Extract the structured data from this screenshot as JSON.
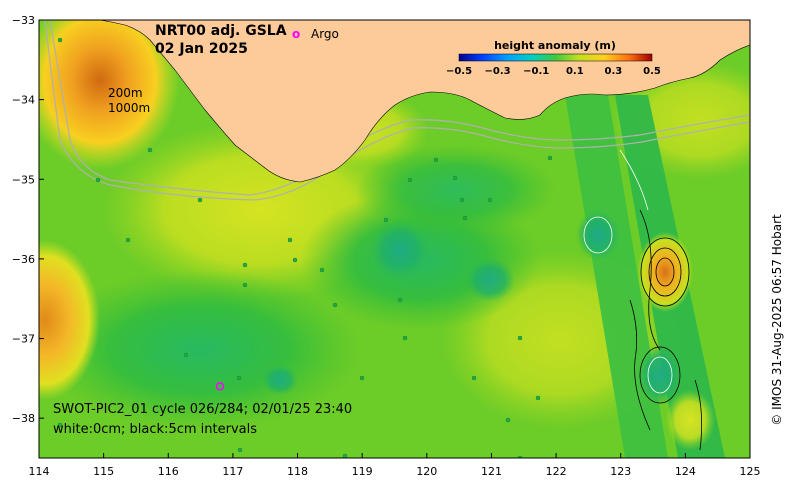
{
  "title": {
    "product": "NRT00 adj. GSLA",
    "date": "02 Jan 2025"
  },
  "legend": {
    "marker_symbol": "o",
    "marker_label": "Argo",
    "marker_color": "#ff00ff"
  },
  "colorbar": {
    "title": "height anomaly (m)",
    "min": -0.5,
    "max": 0.5,
    "tick_labels": [
      "−0.5",
      "−0.3",
      "−0.1",
      "0.1",
      "0.3",
      "0.5"
    ]
  },
  "depth_labels": [
    "200m",
    "1000m"
  ],
  "axes": {
    "x_ticks": [
      "114",
      "115",
      "116",
      "117",
      "118",
      "119",
      "120",
      "121",
      "122",
      "123",
      "124",
      "125"
    ],
    "y_ticks": [
      "−33",
      "−34",
      "−35",
      "−36",
      "−37",
      "−38"
    ],
    "lon_range": [
      114,
      125
    ],
    "lat_range": [
      -38.5,
      -33
    ]
  },
  "footer": {
    "swot_line": "SWOT-PIC2_01 cycle 026/284; 02/01/25 23:40",
    "contour_line": "white:0cm; black:5cm intervals"
  },
  "credit": "© IMOS 31-Aug-2025 06:57 Hobart",
  "colors": {
    "land": "#fdca9a",
    "ocean_base": "#55cc22",
    "positive_anomaly": "#e8a020",
    "negative_anomaly": "#18b050"
  },
  "argo_float": {
    "lon": 116.8,
    "lat": -37.6
  }
}
